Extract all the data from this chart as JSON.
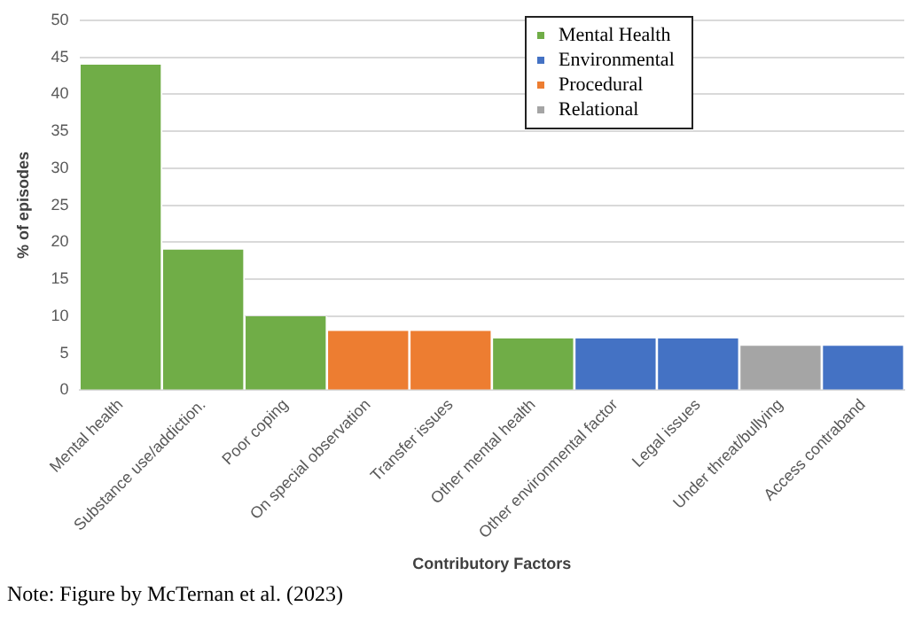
{
  "chart_data": {
    "type": "bar",
    "xlabel": "Contributory Factors",
    "ylabel": "% of episodes",
    "categories": [
      "Mental health",
      "Substance use/addiction.",
      "Poor coping",
      "On special observation",
      "Transfer issues",
      "Other mental health",
      "Other environmental factor",
      "Legal issues",
      "Under threat/bullying",
      "Access contraband"
    ],
    "series": [
      {
        "name": "Mental Health",
        "color": "#70ad47",
        "values": [
          44,
          19,
          10,
          null,
          null,
          7,
          null,
          null,
          null,
          null
        ]
      },
      {
        "name": "Environmental",
        "color": "#4472c4",
        "values": [
          null,
          null,
          null,
          null,
          null,
          null,
          7,
          7,
          null,
          6
        ]
      },
      {
        "name": "Procedural",
        "color": "#ed7d31",
        "values": [
          null,
          null,
          null,
          8,
          8,
          null,
          null,
          null,
          null,
          null
        ]
      },
      {
        "name": "Relational",
        "color": "#a5a5a5",
        "values": [
          null,
          null,
          null,
          null,
          null,
          null,
          null,
          null,
          6,
          null
        ]
      }
    ],
    "ylim": [
      0,
      50
    ],
    "yticks": [
      0,
      5,
      10,
      15,
      20,
      25,
      30,
      35,
      40,
      45,
      50
    ],
    "grid": "y",
    "legend": "top right",
    "annotations": [
      "Note: Figure by McTernan et al. (2023)"
    ]
  }
}
